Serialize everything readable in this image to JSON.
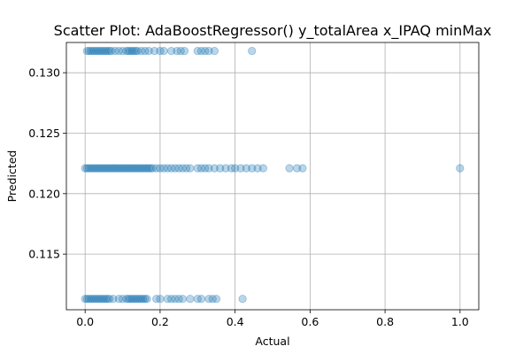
{
  "chart_data": {
    "type": "scatter",
    "title": "Scatter Plot: AdaBoostRegressor() y_totalArea x_IPAQ minMax",
    "xlabel": "Actual",
    "ylabel": "Predicted",
    "xlim": [
      -0.05,
      1.05
    ],
    "ylim": [
      0.1104,
      0.1325
    ],
    "xticks": [
      0.0,
      0.2,
      0.4,
      0.6,
      0.8,
      1.0
    ],
    "xtick_labels": [
      "0.0",
      "0.2",
      "0.4",
      "0.6",
      "0.8",
      "1.0"
    ],
    "yticks": [
      0.115,
      0.12,
      0.125,
      0.13
    ],
    "ytick_labels": [
      "0.115",
      "0.120",
      "0.125",
      "0.130"
    ],
    "grid": true,
    "marker_color": "#1f77b4",
    "marker_alpha": 0.3,
    "series": [
      {
        "points": [
          [
            0.005,
            0.1318
          ],
          [
            0.01,
            0.1318
          ],
          [
            0.015,
            0.1318
          ],
          [
            0.02,
            0.1318
          ],
          [
            0.025,
            0.1318
          ],
          [
            0.03,
            0.1318
          ],
          [
            0.035,
            0.1318
          ],
          [
            0.04,
            0.1318
          ],
          [
            0.045,
            0.1318
          ],
          [
            0.05,
            0.1318
          ],
          [
            0.055,
            0.1318
          ],
          [
            0.06,
            0.1318
          ],
          [
            0.065,
            0.1318
          ],
          [
            0.07,
            0.1318
          ],
          [
            0.08,
            0.1318
          ],
          [
            0.09,
            0.1318
          ],
          [
            0.1,
            0.1318
          ],
          [
            0.11,
            0.1318
          ],
          [
            0.115,
            0.1318
          ],
          [
            0.12,
            0.1318
          ],
          [
            0.125,
            0.1318
          ],
          [
            0.13,
            0.1318
          ],
          [
            0.135,
            0.1318
          ],
          [
            0.14,
            0.1318
          ],
          [
            0.15,
            0.1318
          ],
          [
            0.16,
            0.1318
          ],
          [
            0.17,
            0.1318
          ],
          [
            0.185,
            0.1318
          ],
          [
            0.2,
            0.1318
          ],
          [
            0.21,
            0.1318
          ],
          [
            0.23,
            0.1318
          ],
          [
            0.245,
            0.1318
          ],
          [
            0.255,
            0.1318
          ],
          [
            0.265,
            0.1318
          ],
          [
            0.3,
            0.1318
          ],
          [
            0.31,
            0.1318
          ],
          [
            0.32,
            0.1318
          ],
          [
            0.33,
            0.1318
          ],
          [
            0.345,
            0.1318
          ],
          [
            0.445,
            0.1318
          ],
          [
            0.0,
            0.1221
          ],
          [
            0.005,
            0.1221
          ],
          [
            0.01,
            0.1221
          ],
          [
            0.015,
            0.1221
          ],
          [
            0.02,
            0.1221
          ],
          [
            0.025,
            0.1221
          ],
          [
            0.03,
            0.1221
          ],
          [
            0.035,
            0.1221
          ],
          [
            0.04,
            0.1221
          ],
          [
            0.045,
            0.1221
          ],
          [
            0.05,
            0.1221
          ],
          [
            0.055,
            0.1221
          ],
          [
            0.06,
            0.1221
          ],
          [
            0.065,
            0.1221
          ],
          [
            0.07,
            0.1221
          ],
          [
            0.075,
            0.1221
          ],
          [
            0.08,
            0.1221
          ],
          [
            0.085,
            0.1221
          ],
          [
            0.09,
            0.1221
          ],
          [
            0.095,
            0.1221
          ],
          [
            0.1,
            0.1221
          ],
          [
            0.105,
            0.1221
          ],
          [
            0.11,
            0.1221
          ],
          [
            0.115,
            0.1221
          ],
          [
            0.12,
            0.1221
          ],
          [
            0.125,
            0.1221
          ],
          [
            0.13,
            0.1221
          ],
          [
            0.135,
            0.1221
          ],
          [
            0.14,
            0.1221
          ],
          [
            0.145,
            0.1221
          ],
          [
            0.15,
            0.1221
          ],
          [
            0.155,
            0.1221
          ],
          [
            0.16,
            0.1221
          ],
          [
            0.165,
            0.1221
          ],
          [
            0.17,
            0.1221
          ],
          [
            0.175,
            0.1221
          ],
          [
            0.18,
            0.1221
          ],
          [
            0.19,
            0.1221
          ],
          [
            0.2,
            0.1221
          ],
          [
            0.21,
            0.1221
          ],
          [
            0.22,
            0.1221
          ],
          [
            0.23,
            0.1221
          ],
          [
            0.24,
            0.1221
          ],
          [
            0.25,
            0.1221
          ],
          [
            0.26,
            0.1221
          ],
          [
            0.27,
            0.1221
          ],
          [
            0.28,
            0.1221
          ],
          [
            0.3,
            0.1221
          ],
          [
            0.31,
            0.1221
          ],
          [
            0.32,
            0.1221
          ],
          [
            0.33,
            0.1221
          ],
          [
            0.345,
            0.1221
          ],
          [
            0.36,
            0.1221
          ],
          [
            0.375,
            0.1221
          ],
          [
            0.39,
            0.1221
          ],
          [
            0.4,
            0.1221
          ],
          [
            0.415,
            0.1221
          ],
          [
            0.43,
            0.1221
          ],
          [
            0.445,
            0.1221
          ],
          [
            0.46,
            0.1221
          ],
          [
            0.475,
            0.1221
          ],
          [
            0.545,
            0.1221
          ],
          [
            0.565,
            0.1221
          ],
          [
            0.58,
            0.1221
          ],
          [
            1.0,
            0.1221
          ],
          [
            0.0,
            0.1113
          ],
          [
            0.005,
            0.1113
          ],
          [
            0.01,
            0.1113
          ],
          [
            0.015,
            0.1113
          ],
          [
            0.02,
            0.1113
          ],
          [
            0.025,
            0.1113
          ],
          [
            0.03,
            0.1113
          ],
          [
            0.035,
            0.1113
          ],
          [
            0.04,
            0.1113
          ],
          [
            0.045,
            0.1113
          ],
          [
            0.05,
            0.1113
          ],
          [
            0.055,
            0.1113
          ],
          [
            0.06,
            0.1113
          ],
          [
            0.065,
            0.1113
          ],
          [
            0.075,
            0.1113
          ],
          [
            0.09,
            0.1113
          ],
          [
            0.1,
            0.1113
          ],
          [
            0.11,
            0.1113
          ],
          [
            0.115,
            0.1113
          ],
          [
            0.12,
            0.1113
          ],
          [
            0.125,
            0.1113
          ],
          [
            0.13,
            0.1113
          ],
          [
            0.135,
            0.1113
          ],
          [
            0.14,
            0.1113
          ],
          [
            0.145,
            0.1113
          ],
          [
            0.15,
            0.1113
          ],
          [
            0.155,
            0.1113
          ],
          [
            0.16,
            0.1113
          ],
          [
            0.165,
            0.1113
          ],
          [
            0.19,
            0.1113
          ],
          [
            0.2,
            0.1113
          ],
          [
            0.22,
            0.1113
          ],
          [
            0.23,
            0.1113
          ],
          [
            0.24,
            0.1113
          ],
          [
            0.25,
            0.1113
          ],
          [
            0.26,
            0.1113
          ],
          [
            0.28,
            0.1113
          ],
          [
            0.3,
            0.1113
          ],
          [
            0.31,
            0.1113
          ],
          [
            0.33,
            0.1113
          ],
          [
            0.34,
            0.1113
          ],
          [
            0.35,
            0.1113
          ],
          [
            0.42,
            0.1113
          ]
        ]
      }
    ]
  }
}
